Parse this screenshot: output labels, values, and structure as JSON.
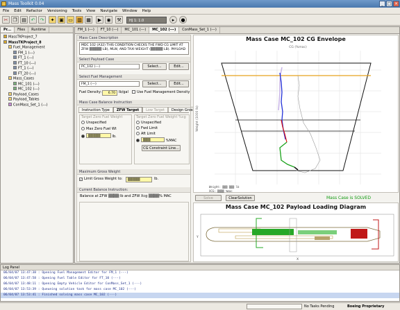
{
  "window": {
    "title": "Mass Toolkit 0.04"
  },
  "menu": [
    "File",
    "Edit",
    "Refactor",
    "Versioning",
    "Tools",
    "View",
    "Navigate",
    "Window",
    "Help"
  ],
  "toolbar": {
    "combo_value": "HJ 1: 1.0"
  },
  "explorer": {
    "tabs": [
      "Pr...",
      "Files",
      "Runtime"
    ],
    "items": [
      {
        "label": "MassTKProject_7",
        "level": 0,
        "icon": "project-icon"
      },
      {
        "label": "MassTKProject_8",
        "level": 0,
        "icon": "project-icon",
        "bold": true
      },
      {
        "label": "Fuel_Management",
        "level": 1,
        "icon": "folder-icon"
      },
      {
        "label": "FM_1 (---)",
        "level": 2,
        "icon": "fuel-item-icon"
      },
      {
        "label": "FT_1 (---)",
        "level": 2,
        "icon": "fuel-item-icon"
      },
      {
        "label": "FT_10 (---)",
        "level": 2,
        "icon": "fuel-item-icon"
      },
      {
        "label": "FT_1 (---)",
        "level": 2,
        "icon": "fuel-item-icon"
      },
      {
        "label": "FT_20 (---)",
        "level": 2,
        "icon": "fuel-item-icon"
      },
      {
        "label": "Mass_Cases",
        "level": 1,
        "icon": "folder-icon"
      },
      {
        "label": "MC_101 (---)",
        "level": 2,
        "icon": "mass-case-icon"
      },
      {
        "label": "MC_102 (---)",
        "level": 2,
        "icon": "mass-case-icon"
      },
      {
        "label": "Payload_Cases",
        "level": 1,
        "icon": "folder-icon"
      },
      {
        "label": "Payload_Tables",
        "level": 1,
        "icon": "folder-icon"
      },
      {
        "label": "ConMass_Set_1 (---)",
        "level": 1,
        "icon": "config-icon"
      }
    ]
  },
  "editor_tabs": [
    "FM_1 (---)",
    "FT_10 (---)",
    "MC_101 (---)",
    "MC_102 (---)",
    "ConMass_Set_1 (---)"
  ],
  "form": {
    "desc_header": "Mass Case Description",
    "desc_text": "MDC 102 (A32) THIS CONDITION CHECKS THE FWD CG LIMIT AT ZFW ▒▒▒▒▒ LB), MLW, AND TAXI WEIGHT (▒▒▒▒▒ LB). PAYLOAD",
    "payload_header": "Select Payload Case",
    "payload_value": "PC_102 (---)",
    "fuel_header": "Select Fuel Management",
    "fuel_value": "FM_1 (---)",
    "select_label": "Select...",
    "edit_label": "Edit...",
    "fuel_density_label": "Fuel Density:",
    "fuel_density_value": "6.70",
    "fuel_density_unit": "lb/gal",
    "use_density_label": "Use Fuel Management Density",
    "balance_header": "Mass Case Balance Instruction",
    "inner_tabs": [
      "Instruction Type",
      "ZFW Target",
      "Low Target",
      "Design Gross Weights"
    ],
    "zfw_group": "Target Zero Fuel Weight",
    "zfw_options": [
      "Unspecified",
      "Max Zero Fuel Wt"
    ],
    "zfw_value": "▒▒▒▒▒",
    "lb": "lb.",
    "cg_group": "Target Zero Fuel Weight %cg",
    "cg_options": [
      "Unspecified",
      "Fwd Limit",
      "Aft Limit"
    ],
    "cg_value": "▒▒▒",
    "mac_unit": "%MAC",
    "cg_button": "CG Constraint Line...",
    "mgw_header": "Maximum Gross Weight",
    "limit_label": "Limit Gross Weight to:",
    "limit_value": "▒▒▒▒▒",
    "current_header": "Current Balance Instruction:",
    "current_text": "Balance at ZFW ▒▒▒▒ lb and ZFW Xcg ▒▒▒▒% MAC",
    "solve_label": "Solve",
    "clear_label": "ClearSolution",
    "status": "Mass Case is SOLVED",
    "status_color": "#109a10"
  },
  "cg_chart": {
    "title": "Mass Case MC_102 CG Envelope",
    "top_axis": "CG (%mac)",
    "y_axis": "Weight (1000 lb)",
    "legend": [
      "Weight: ▒▒▒ ▒▒▒ lb",
      "XCG: ▒▒▒▒ %mac"
    ]
  },
  "payload_chart": {
    "title": "Mass Case MC_102 Payload Loading Diagram",
    "y_axis": "Y",
    "x_axis": "X"
  },
  "log": {
    "title": "Log Panel",
    "lines": [
      "06/04/07 13:47:38 : Opening Fuel Management Editor for FM_1 (---)",
      "06/04/07 13:47:58 : Opening Fuel Table Editor for FT_10 (---)",
      "06/04/07 13:48:11 : Opening Empty Vehicle Editor for ConMass_Set_1 (---)",
      "06/04/07 13:53:39 : Queueing solution task for mass case MC_102 (---)",
      "06/04/07 13:53:41 : Finished solving mass case MC_102 (---)"
    ]
  },
  "statusbar": {
    "tasks": "No Tasks Pending",
    "brand": "Boeing Proprietary"
  }
}
